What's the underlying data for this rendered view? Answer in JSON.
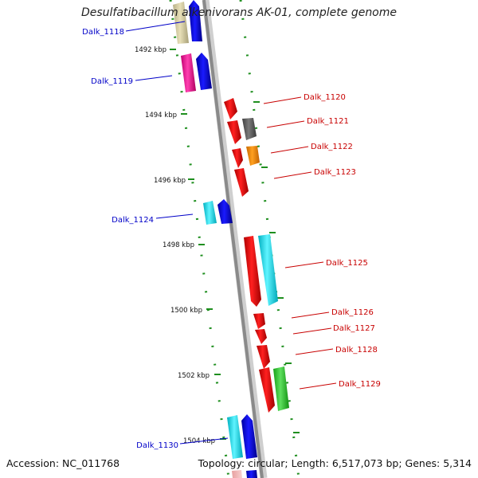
{
  "title": "Desulfatibacillum alkenivorans AK-01, complete genome",
  "accession": "Accession: NC_011768",
  "summary": "Topology: circular; Length: 6,517,073 bp; Genes: 5,314",
  "colors": {
    "backbone": "#8a8a8a",
    "tick": "#1f8f1f",
    "left_label": "#0000c8",
    "right_label": "#c80000"
  },
  "ticks": [
    "1492 kbp",
    "1494 kbp",
    "1496 kbp",
    "1498 kbp",
    "1500 kbp",
    "1502 kbp",
    "1504 kbp"
  ],
  "genes": [
    {
      "label": "Dalk_1118",
      "side": "left"
    },
    {
      "label": "Dalk_1119",
      "side": "left"
    },
    {
      "label": "Dalk_1120",
      "side": "right"
    },
    {
      "label": "Dalk_1121",
      "side": "right"
    },
    {
      "label": "Dalk_1122",
      "side": "right"
    },
    {
      "label": "Dalk_1123",
      "side": "right"
    },
    {
      "label": "Dalk_1124",
      "side": "left"
    },
    {
      "label": "Dalk_1125",
      "side": "right"
    },
    {
      "label": "Dalk_1126",
      "side": "right"
    },
    {
      "label": "Dalk_1127",
      "side": "right"
    },
    {
      "label": "Dalk_1128",
      "side": "right"
    },
    {
      "label": "Dalk_1129",
      "side": "right"
    },
    {
      "label": "Dalk_1130",
      "side": "left"
    }
  ]
}
